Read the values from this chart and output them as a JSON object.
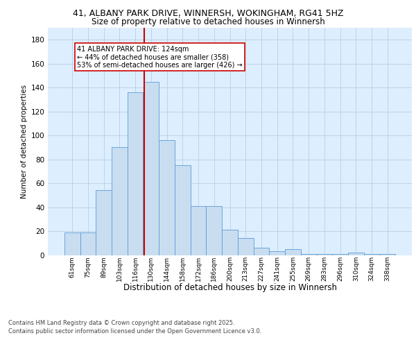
{
  "title_line1": "41, ALBANY PARK DRIVE, WINNERSH, WOKINGHAM, RG41 5HZ",
  "title_line2": "Size of property relative to detached houses in Winnersh",
  "xlabel": "Distribution of detached houses by size in Winnersh",
  "ylabel": "Number of detached properties",
  "categories": [
    "61sqm",
    "75sqm",
    "89sqm",
    "103sqm",
    "116sqm",
    "130sqm",
    "144sqm",
    "158sqm",
    "172sqm",
    "186sqm",
    "200sqm",
    "213sqm",
    "227sqm",
    "241sqm",
    "255sqm",
    "269sqm",
    "283sqm",
    "296sqm",
    "310sqm",
    "324sqm",
    "338sqm"
  ],
  "values": [
    19,
    19,
    54,
    90,
    136,
    145,
    96,
    75,
    41,
    41,
    21,
    14,
    6,
    3,
    5,
    1,
    1,
    1,
    2,
    1,
    1
  ],
  "bar_color": "#c9ddf0",
  "bar_edge_color": "#5b9bd5",
  "grid_color": "#b8cfe0",
  "vline_color": "#cc0000",
  "annotation_text": "41 ALBANY PARK DRIVE: 124sqm\n← 44% of detached houses are smaller (358)\n53% of semi-detached houses are larger (426) →",
  "annotation_box_color": "#ffffff",
  "annotation_box_edge": "#cc0000",
  "footer_line1": "Contains HM Land Registry data © Crown copyright and database right 2025.",
  "footer_line2": "Contains public sector information licensed under the Open Government Licence v3.0.",
  "ylim": [
    0,
    190
  ],
  "yticks": [
    0,
    20,
    40,
    60,
    80,
    100,
    120,
    140,
    160,
    180
  ],
  "plot_bg_color": "#ddeeff"
}
